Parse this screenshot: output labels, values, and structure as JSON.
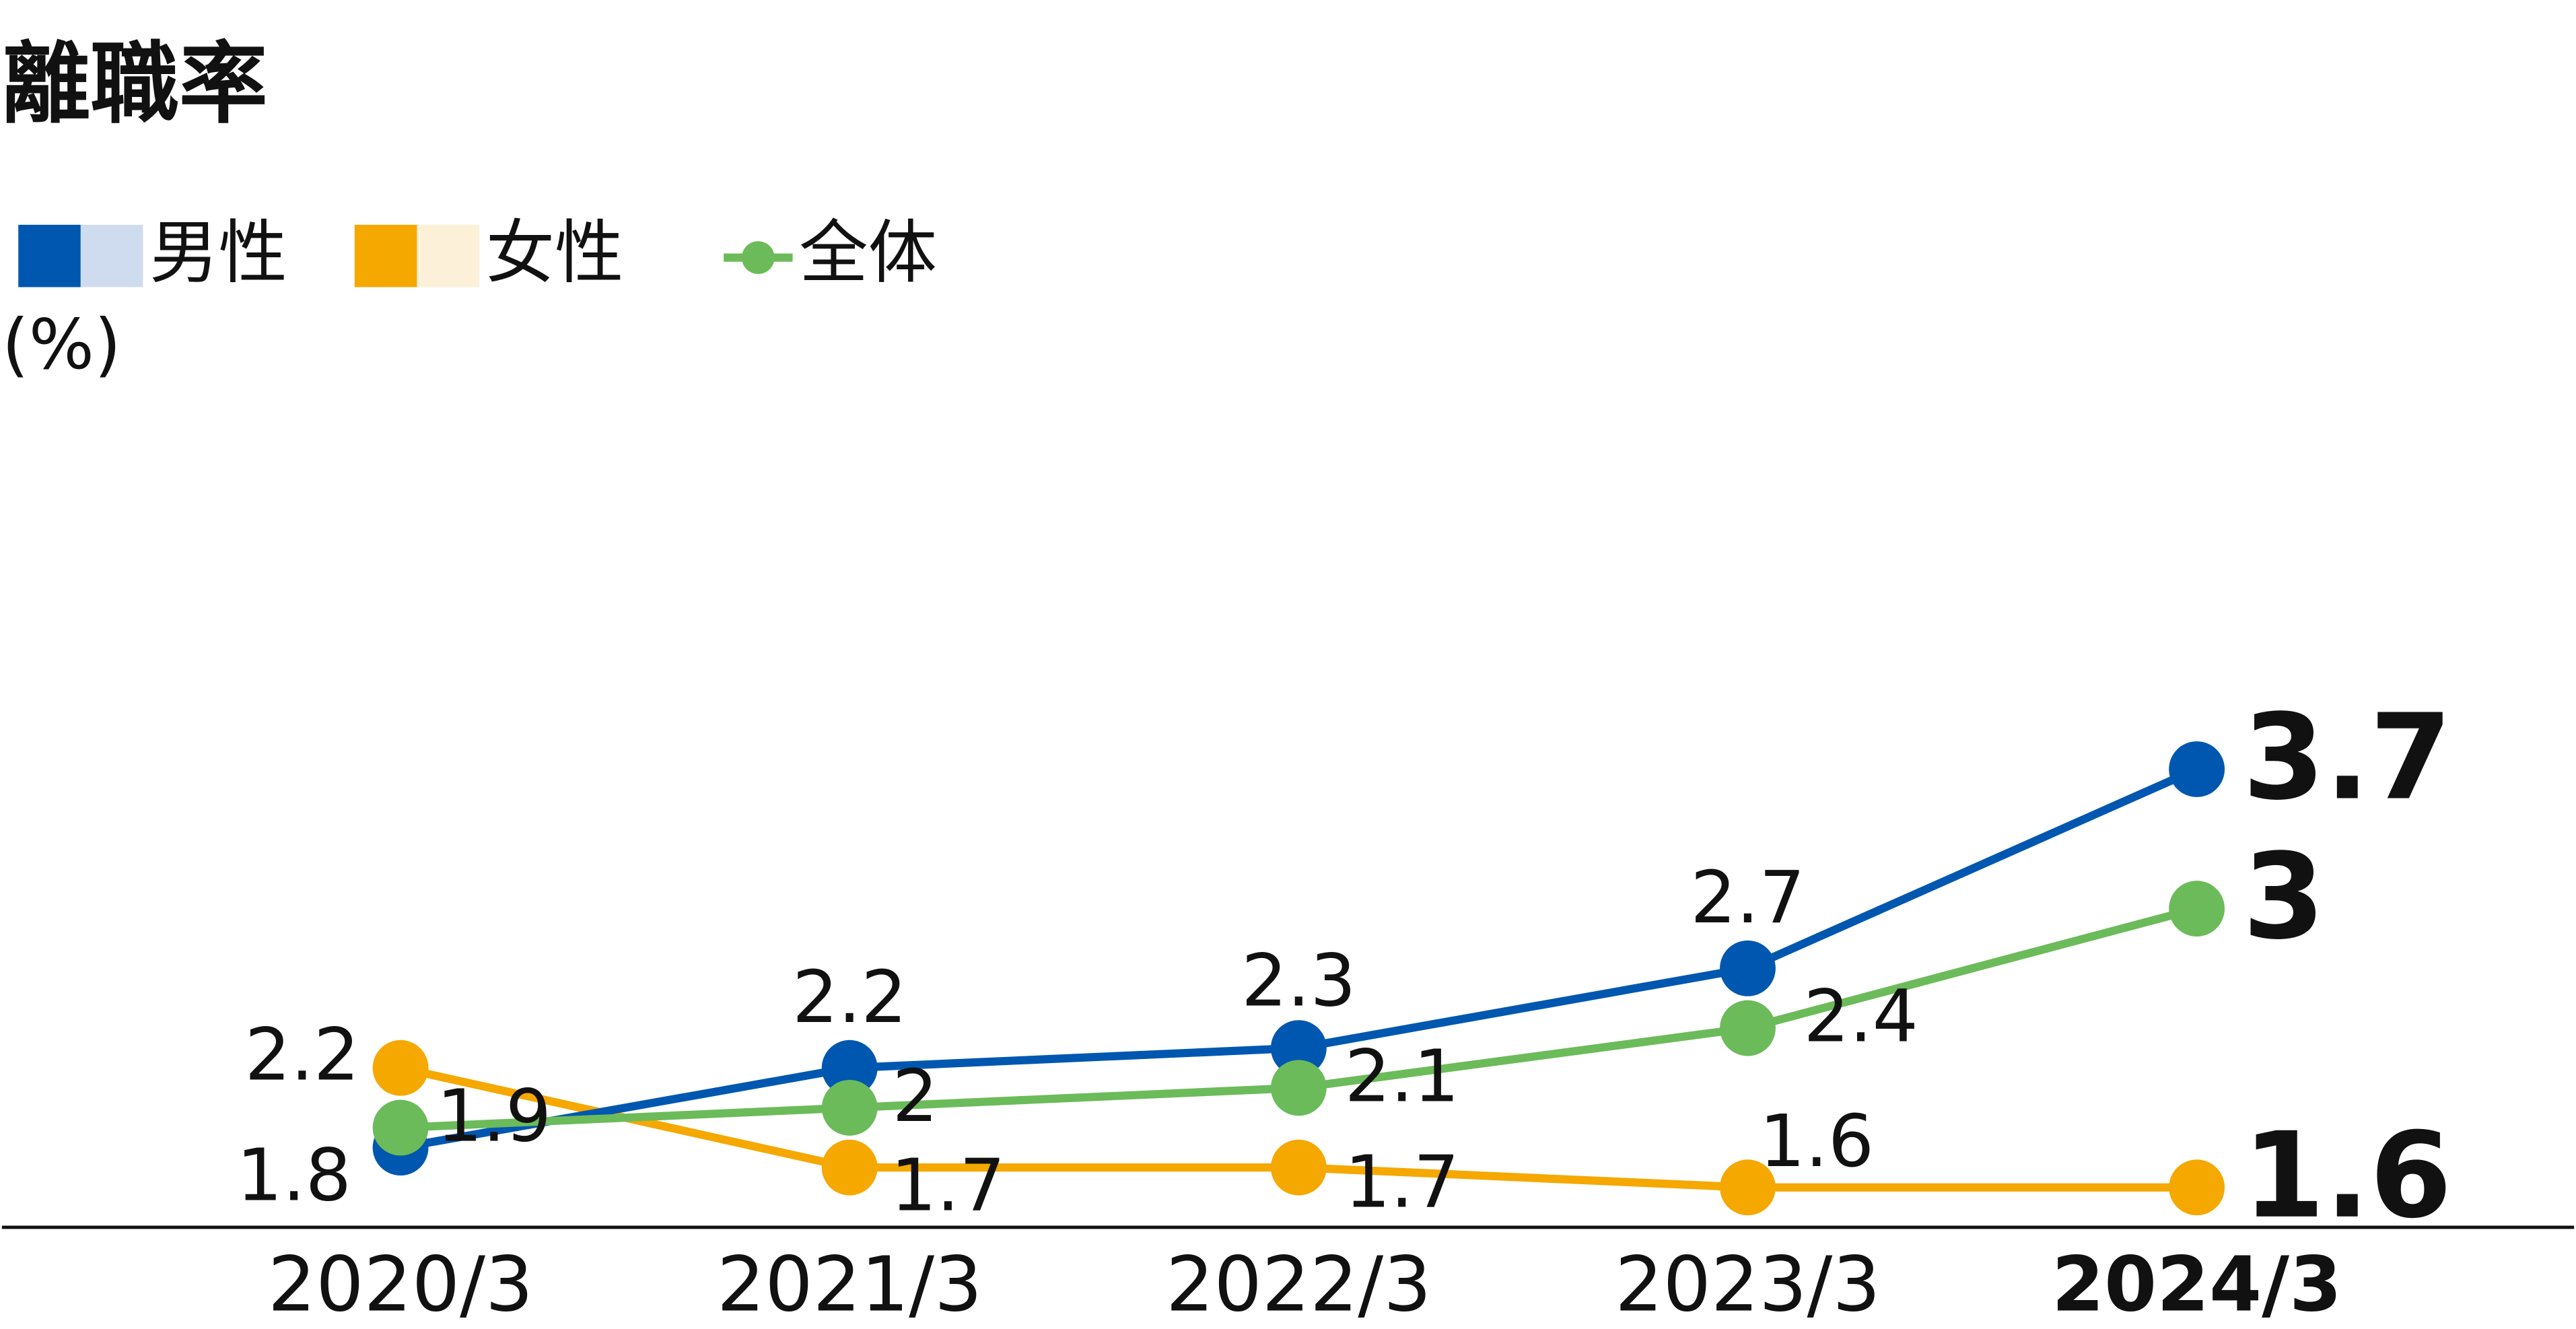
{
  "chart_data": {
    "type": "line",
    "title": "離職率",
    "unit": "(%)",
    "categories": [
      "2020/3",
      "2021/3",
      "2022/3",
      "2023/3",
      "2024/3"
    ],
    "series": [
      {
        "name": "女性",
        "color": "#f5a800",
        "light_color": "#fdf0d8",
        "values": [
          2.2,
          1.7,
          1.7,
          1.6,
          1.6
        ]
      },
      {
        "name": "男性",
        "color": "#0057b0",
        "light_color": "#cfdcef",
        "values": [
          1.8,
          2.2,
          2.3,
          2.7,
          3.7
        ]
      },
      {
        "name": "全体",
        "color": "#6cbb5a",
        "values": [
          1.9,
          2.0,
          2.1,
          2.4,
          3.0
        ]
      }
    ],
    "ylim": [
      1.4,
      5
    ],
    "grid": false
  }
}
